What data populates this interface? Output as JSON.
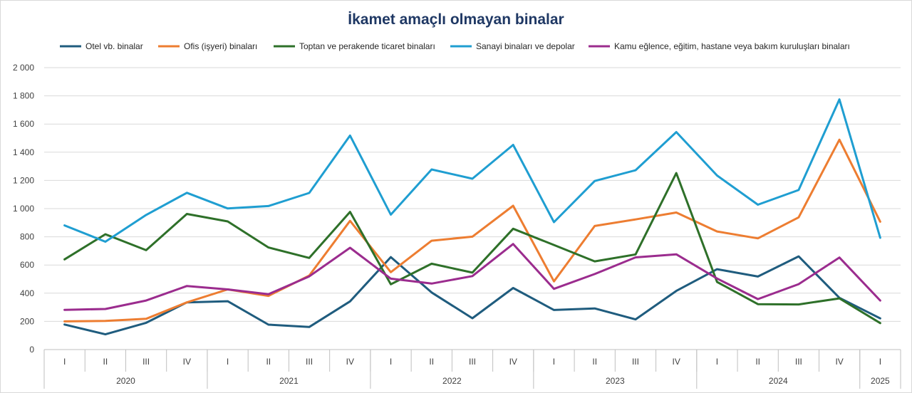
{
  "chart_data": {
    "type": "line",
    "title": "İkamet amaçlı olmayan binalar",
    "xlabel": "",
    "ylabel": "",
    "ylim": [
      0,
      2000
    ],
    "yticks": [
      "0",
      "200",
      "400",
      "600",
      "800",
      "1 000",
      "1 200",
      "1 400",
      "1 600",
      "1 800",
      "2 000"
    ],
    "ytick_values": [
      0,
      200,
      400,
      600,
      800,
      1000,
      1200,
      1400,
      1600,
      1800,
      2000
    ],
    "grid": true,
    "legend_position": "top",
    "categories": [
      "I",
      "II",
      "III",
      "IV",
      "I",
      "II",
      "III",
      "IV",
      "I",
      "II",
      "III",
      "IV",
      "I",
      "II",
      "III",
      "IV",
      "I",
      "II",
      "III",
      "IV",
      "I"
    ],
    "years": [
      {
        "label": "2020",
        "count": 4
      },
      {
        "label": "2021",
        "count": 4
      },
      {
        "label": "2022",
        "count": 4
      },
      {
        "label": "2023",
        "count": 4
      },
      {
        "label": "2024",
        "count": 4
      },
      {
        "label": "2025",
        "count": 1
      }
    ],
    "series": [
      {
        "name": "Otel vb. binalar",
        "color": "#1f5c7e",
        "values": [
          178,
          108,
          190,
          335,
          343,
          177,
          160,
          342,
          656,
          405,
          222,
          437,
          281,
          292,
          214,
          416,
          570,
          518,
          661,
          367,
          221
        ]
      },
      {
        "name": "Ofis (işyeri) binaları",
        "color": "#ed7d31",
        "values": [
          200,
          203,
          218,
          335,
          427,
          381,
          525,
          913,
          549,
          772,
          801,
          1020,
          484,
          877,
          923,
          972,
          838,
          789,
          938,
          1489,
          907
        ]
      },
      {
        "name": "Toptan ve perakende ticaret binaları",
        "color": "#2e7029",
        "values": [
          640,
          818,
          705,
          962,
          909,
          724,
          650,
          977,
          463,
          609,
          546,
          857,
          742,
          626,
          675,
          1252,
          480,
          322,
          320,
          363,
          188
        ]
      },
      {
        "name": "Sanayi binaları ve depolar",
        "color": "#1f9ed1",
        "values": [
          881,
          765,
          955,
          1112,
          1001,
          1018,
          1111,
          1518,
          957,
          1278,
          1212,
          1452,
          904,
          1196,
          1272,
          1543,
          1235,
          1028,
          1132,
          1775,
          793
        ]
      },
      {
        "name": "Kamu eğlence, eğitim, hastane veya bakım kuruluşları binaları",
        "color": "#9b2c8e",
        "values": [
          282,
          288,
          348,
          451,
          427,
          393,
          519,
          722,
          503,
          468,
          521,
          749,
          431,
          536,
          654,
          676,
          504,
          358,
          464,
          653,
          348
        ]
      }
    ]
  }
}
